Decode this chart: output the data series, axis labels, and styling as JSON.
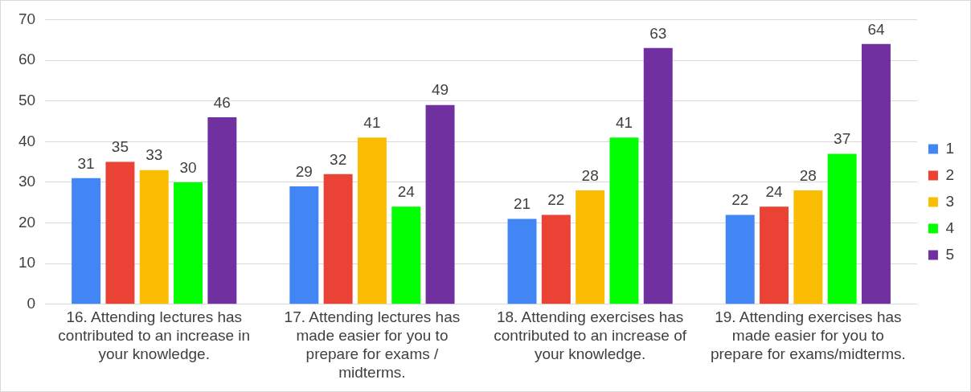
{
  "chart_data": {
    "type": "bar",
    "categories": [
      "16. Attending lectures has contributed to an increase in your knowledge.",
      "17. Attending lectures has made easier for you to prepare for exams / midterms.",
      "18. Attending exercises has contributed to an increase of your knowledge.",
      "19. Attending exercises has made easier for you to prepare for exams/midterms."
    ],
    "series": [
      {
        "name": "1",
        "color": "#4285f4",
        "values": [
          31,
          29,
          21,
          22
        ]
      },
      {
        "name": "2",
        "color": "#ea4335",
        "values": [
          35,
          32,
          22,
          24
        ]
      },
      {
        "name": "3",
        "color": "#fbbc04",
        "values": [
          33,
          41,
          28,
          28
        ]
      },
      {
        "name": "4",
        "color": "#00ff00",
        "values": [
          30,
          24,
          41,
          37
        ]
      },
      {
        "name": "5",
        "color": "#7030a0",
        "values": [
          46,
          49,
          63,
          64
        ]
      }
    ],
    "ylim": [
      0,
      70
    ],
    "yticks": [
      0,
      10,
      20,
      30,
      40,
      50,
      60,
      70
    ],
    "grid": "y",
    "legend": "right",
    "data_labels": true
  }
}
